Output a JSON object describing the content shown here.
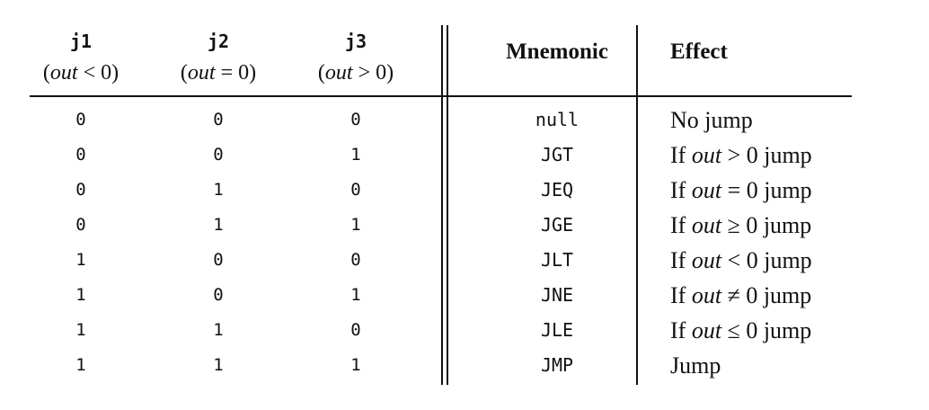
{
  "header": {
    "j1": {
      "code": "j1",
      "cond_open": "(",
      "cond_var": "out",
      "cond_rest": " < 0)"
    },
    "j2": {
      "code": "j2",
      "cond_open": "(",
      "cond_var": "out",
      "cond_rest": " = 0)"
    },
    "j3": {
      "code": "j3",
      "cond_open": "(",
      "cond_var": "out",
      "cond_rest": " > 0)"
    },
    "mnemonic": "Mnemonic",
    "effect": "Effect"
  },
  "rows": [
    {
      "j1": "0",
      "j2": "0",
      "j3": "0",
      "mnemonic": "null",
      "effect": {
        "pre": "No jump",
        "var": "",
        "post": ""
      }
    },
    {
      "j1": "0",
      "j2": "0",
      "j3": "1",
      "mnemonic": "JGT",
      "effect": {
        "pre": "If ",
        "var": "out",
        "post": " > 0 jump"
      }
    },
    {
      "j1": "0",
      "j2": "1",
      "j3": "0",
      "mnemonic": "JEQ",
      "effect": {
        "pre": "If ",
        "var": "out",
        "post": " = 0 jump"
      }
    },
    {
      "j1": "0",
      "j2": "1",
      "j3": "1",
      "mnemonic": "JGE",
      "effect": {
        "pre": "If ",
        "var": "out",
        "post": " ≥ 0 jump"
      }
    },
    {
      "j1": "1",
      "j2": "0",
      "j3": "0",
      "mnemonic": "JLT",
      "effect": {
        "pre": "If ",
        "var": "out",
        "post": " < 0 jump"
      }
    },
    {
      "j1": "1",
      "j2": "0",
      "j3": "1",
      "mnemonic": "JNE",
      "effect": {
        "pre": "If ",
        "var": "out",
        "post": " ≠ 0 jump"
      }
    },
    {
      "j1": "1",
      "j2": "1",
      "j3": "0",
      "mnemonic": "JLE",
      "effect": {
        "pre": "If ",
        "var": "out",
        "post": " ≤ 0 jump"
      }
    },
    {
      "j1": "1",
      "j2": "1",
      "j3": "1",
      "mnemonic": "JMP",
      "effect": {
        "pre": "Jump",
        "var": "",
        "post": ""
      }
    }
  ]
}
